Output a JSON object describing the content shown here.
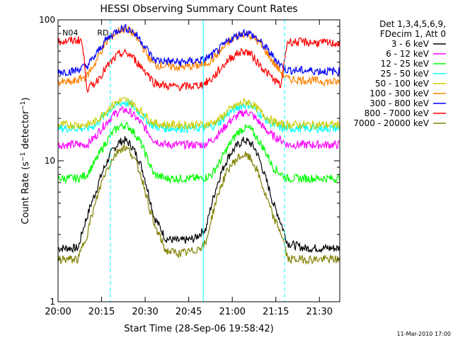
{
  "chart_data": {
    "type": "line",
    "title": "HESSI Observing Summary Count Rates",
    "xlabel": "Start Time (28-Sep-06 19:58:42)",
    "ylabel": "Count Rate (s⁻¹ detector⁻¹)",
    "ylabel_parts": {
      "main": "Count Rate (s",
      "sup1": "−1",
      "mid": " detector",
      "sup2": "−1",
      "end": ")"
    },
    "yscale": "log",
    "ylim": [
      1,
      100
    ],
    "xlim_minutes": [
      0,
      97
    ],
    "x_ticks": [
      {
        "label": "20:00",
        "min": 0
      },
      {
        "label": "20:15",
        "min": 15
      },
      {
        "label": "20:30",
        "min": 30
      },
      {
        "label": "20:45",
        "min": 45
      },
      {
        "label": "21:00",
        "min": 60
      },
      {
        "label": "21:15",
        "min": 75
      },
      {
        "label": "21:30",
        "min": 90
      }
    ],
    "y_ticks": [
      {
        "label": "1",
        "value": 1
      },
      {
        "label": "10",
        "value": 10
      },
      {
        "label": "100",
        "value": 100
      }
    ],
    "legend": {
      "position": "top-right",
      "header": [
        "Det 1,3,4,5,6,9,",
        "FDecim 1, Att 0"
      ],
      "entries": [
        {
          "label": "3 - 6 keV",
          "color": "#000000"
        },
        {
          "label": "6 - 12 keV",
          "color": "#ff00ff"
        },
        {
          "label": "12 - 25 keV",
          "color": "#00ff00"
        },
        {
          "label": "25 - 50 keV",
          "color": "#00ffff"
        },
        {
          "label": "50 - 100 keV",
          "color": "#cccc00"
        },
        {
          "label": "100 - 300 keV",
          "color": "#ff8000"
        },
        {
          "label": "300 - 800 keV",
          "color": "#0000ff"
        },
        {
          "label": "800 - 7000 keV",
          "color": "#ff0000"
        },
        {
          "label": "7000 - 20000 keV",
          "color": "#808000"
        }
      ]
    },
    "annotations": [
      {
        "text": "RD",
        "x_min": 13.5
      },
      {
        "text": "N04",
        "x_min": 1.5
      }
    ],
    "vertical_markers_min": [
      18,
      50,
      78,
      97
    ],
    "series": [
      {
        "name": "3 - 6 keV",
        "color": "#000000",
        "x": [
          0,
          7,
          10,
          13,
          16,
          19,
          21,
          23,
          25,
          28,
          31,
          33,
          37,
          42,
          47,
          51,
          53,
          56,
          59,
          62,
          64,
          66,
          68,
          71,
          74,
          77,
          79,
          85,
          90,
          97
        ],
        "y": [
          2.4,
          2.4,
          4,
          6,
          9,
          12,
          13.5,
          14,
          13,
          10,
          6,
          4,
          2.8,
          2.7,
          2.8,
          3.3,
          5,
          8,
          11,
          13,
          14,
          13.5,
          12,
          8,
          5,
          3.5,
          2.6,
          2.4,
          2.4,
          2.4
        ]
      },
      {
        "name": "6 - 12 keV",
        "color": "#ff00ff",
        "x": [
          0,
          10,
          13,
          16,
          19,
          21,
          23,
          25,
          28,
          31,
          33,
          37,
          50,
          53,
          56,
          59,
          62,
          64,
          66,
          68,
          71,
          74,
          77,
          79,
          97
        ],
        "y": [
          13,
          13,
          15,
          18,
          21,
          22.5,
          23,
          22,
          19,
          16,
          14,
          13,
          13,
          14,
          16,
          19,
          21,
          22,
          22,
          20,
          17,
          15,
          14,
          13,
          13
        ]
      },
      {
        "name": "12 - 25 keV",
        "color": "#00ff00",
        "x": [
          0,
          7,
          10,
          13,
          16,
          19,
          21,
          23,
          25,
          28,
          31,
          33,
          37,
          50,
          53,
          56,
          59,
          62,
          64,
          66,
          68,
          71,
          74,
          77,
          79,
          97
        ],
        "y": [
          7.5,
          7.5,
          8,
          10,
          13,
          16,
          17.5,
          18,
          17,
          14,
          10,
          8,
          7.5,
          7.5,
          8,
          10,
          13,
          16,
          17,
          17,
          15,
          12,
          9,
          8,
          7.5,
          7.5
        ]
      },
      {
        "name": "25 - 50 keV",
        "color": "#00ffff",
        "x": [
          0,
          10,
          13,
          16,
          19,
          21,
          23,
          25,
          28,
          31,
          33,
          37,
          50,
          53,
          56,
          59,
          62,
          64,
          66,
          68,
          71,
          74,
          77,
          79,
          97
        ],
        "y": [
          17,
          17,
          18,
          21,
          24,
          25.5,
          26,
          25,
          22,
          19,
          17.5,
          17,
          17,
          17.5,
          19,
          22,
          24,
          25,
          25,
          23,
          20,
          18,
          17,
          17,
          17
        ]
      },
      {
        "name": "50 - 100 keV",
        "color": "#cccc00",
        "x": [
          0,
          10,
          13,
          16,
          19,
          21,
          23,
          25,
          28,
          31,
          33,
          37,
          50,
          53,
          56,
          59,
          62,
          64,
          66,
          68,
          71,
          74,
          77,
          79,
          97
        ],
        "y": [
          18,
          18,
          19,
          22,
          25,
          26.5,
          27,
          26,
          23,
          20,
          18.5,
          18,
          18,
          18.5,
          20,
          23,
          25,
          26,
          26,
          24,
          21,
          19,
          18,
          18,
          18
        ]
      },
      {
        "name": "100 - 300 keV",
        "color": "#ff8000",
        "x": [
          0,
          5,
          10,
          13,
          16,
          19,
          21,
          23,
          25,
          28,
          31,
          33,
          37,
          42,
          47,
          50,
          53,
          56,
          59,
          62,
          64,
          66,
          68,
          71,
          74,
          77,
          79,
          97
        ],
        "y": [
          36,
          36,
          40,
          50,
          66,
          78,
          84,
          86,
          83,
          70,
          55,
          48,
          47,
          46,
          47,
          48,
          52,
          60,
          70,
          77,
          80,
          78,
          73,
          62,
          50,
          42,
          38,
          36
        ]
      },
      {
        "name": "300 - 800 keV",
        "color": "#0000ff",
        "x": [
          0,
          5,
          10,
          13,
          16,
          19,
          21,
          23,
          25,
          28,
          31,
          33,
          37,
          42,
          47,
          50,
          53,
          56,
          59,
          62,
          64,
          66,
          68,
          71,
          74,
          77,
          79,
          97
        ],
        "y": [
          43,
          43,
          47,
          56,
          70,
          80,
          86,
          88,
          85,
          74,
          60,
          52,
          51,
          50,
          51,
          52,
          56,
          63,
          72,
          78,
          82,
          80,
          75,
          65,
          55,
          47,
          44,
          43
        ]
      },
      {
        "name": "800 - 7000 keV",
        "color": "#ff0000",
        "x": [
          0,
          8,
          10,
          13,
          16,
          19,
          21,
          23,
          25,
          28,
          31,
          33,
          37,
          42,
          47,
          50,
          53,
          56,
          59,
          62,
          64,
          66,
          68,
          71,
          74,
          77,
          79,
          97
        ],
        "y": [
          70,
          72,
          32,
          36,
          44,
          52,
          57,
          58,
          56,
          48,
          41,
          36,
          34,
          33.5,
          34,
          35,
          38,
          45,
          53,
          58,
          60,
          58,
          52,
          44,
          38,
          34,
          70,
          68
        ]
      },
      {
        "name": "7000 - 20000 keV",
        "color": "#808000",
        "x": [
          0,
          7,
          10,
          13,
          16,
          19,
          21,
          23,
          25,
          28,
          31,
          33,
          37,
          42,
          47,
          51,
          53,
          56,
          59,
          62,
          64,
          66,
          68,
          71,
          74,
          77,
          79,
          85,
          90,
          97
        ],
        "y": [
          2,
          2,
          3,
          5,
          8,
          10.5,
          12,
          12.5,
          11.5,
          8.5,
          5,
          3.5,
          2.3,
          2.2,
          2.3,
          2.6,
          4,
          6.5,
          9,
          10.5,
          11,
          10.5,
          9,
          6,
          4,
          3,
          2,
          2,
          2,
          2
        ]
      }
    ]
  },
  "footer": {
    "date": "11-Mar-2010 17:00"
  }
}
